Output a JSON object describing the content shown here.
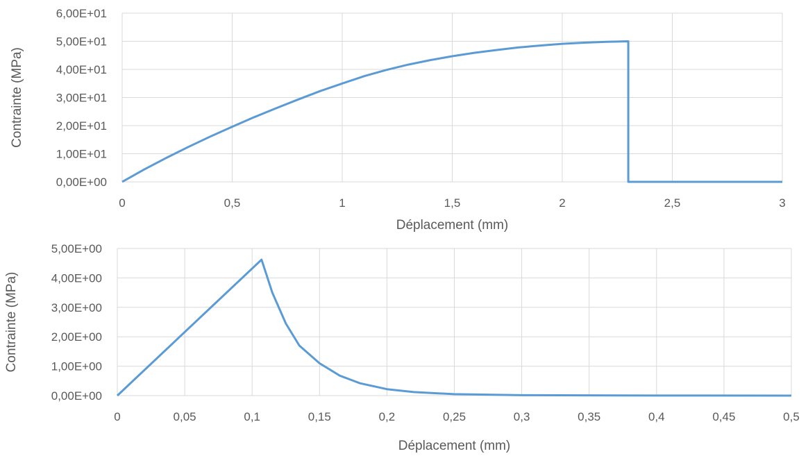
{
  "chart_data": [
    {
      "type": "line",
      "xlabel": "Déplacement (mm)",
      "ylabel": "Contrainte (MPa)",
      "xlim": [
        0,
        3
      ],
      "ylim": [
        0,
        60
      ],
      "x_ticks": [
        0,
        0.5,
        1,
        1.5,
        2,
        2.5,
        3
      ],
      "x_tick_labels": [
        "0",
        "0,5",
        "1",
        "1,5",
        "2",
        "2,5",
        "3"
      ],
      "y_ticks": [
        0,
        10,
        20,
        30,
        40,
        50,
        60
      ],
      "y_tick_labels": [
        "0,00E+00",
        "1,00E+01",
        "2,00E+01",
        "3,00E+01",
        "4,00E+01",
        "5,00E+01",
        "6,00E+01"
      ],
      "grid": true,
      "legend": "none",
      "color": "#5b9bd5",
      "series": [
        {
          "x": [
            0,
            0.1,
            0.2,
            0.3,
            0.4,
            0.5,
            0.6,
            0.7,
            0.8,
            0.9,
            1.0,
            1.1,
            1.2,
            1.3,
            1.4,
            1.5,
            1.6,
            1.7,
            1.8,
            1.9,
            2.0,
            2.1,
            2.2,
            2.3,
            2.3,
            3.0
          ],
          "y": [
            0,
            4.4,
            8.5,
            12.4,
            16.1,
            19.6,
            23.0,
            26.2,
            29.3,
            32.3,
            35.0,
            37.6,
            39.8,
            41.7,
            43.3,
            44.7,
            45.9,
            46.9,
            47.8,
            48.5,
            49.1,
            49.5,
            49.8,
            50.0,
            0,
            0
          ]
        }
      ]
    },
    {
      "type": "line",
      "xlabel": "Déplacement (mm)",
      "ylabel": "Contrainte (MPa)",
      "xlim": [
        0,
        0.5
      ],
      "ylim": [
        0,
        5
      ],
      "x_ticks": [
        0,
        0.05,
        0.1,
        0.15,
        0.2,
        0.25,
        0.3,
        0.35,
        0.4,
        0.45,
        0.5
      ],
      "x_tick_labels": [
        "0",
        "0,05",
        "0,1",
        "0,15",
        "0,2",
        "0,25",
        "0,3",
        "0,35",
        "0,4",
        "0,45",
        "0,5"
      ],
      "y_ticks": [
        0,
        1,
        2,
        3,
        4,
        5
      ],
      "y_tick_labels": [
        "0,00E+00",
        "1,00E+00",
        "2,00E+00",
        "3,00E+00",
        "4,00E+00",
        "5,00E+00"
      ],
      "grid": true,
      "legend": "none",
      "color": "#5b9bd5",
      "series": [
        {
          "x": [
            0,
            0.107,
            0.115,
            0.125,
            0.135,
            0.15,
            0.165,
            0.18,
            0.2,
            0.22,
            0.25,
            0.3,
            0.4,
            0.5
          ],
          "y": [
            0,
            4.62,
            3.5,
            2.45,
            1.7,
            1.1,
            0.68,
            0.42,
            0.22,
            0.12,
            0.05,
            0.015,
            0.003,
            0.0
          ]
        }
      ]
    }
  ]
}
